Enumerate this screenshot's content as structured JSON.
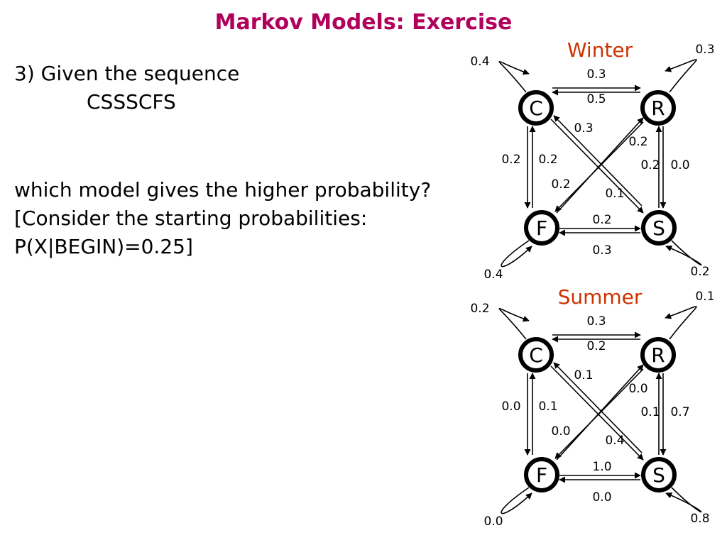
{
  "title": "Markov Models: Exercise",
  "question": {
    "line1": "3) Given the sequence",
    "sequence": "CSSSCFS",
    "line3": "which model gives the higher probability?",
    "line4": "[Consider the starting probabilities:",
    "line5": "P(X|BEGIN)=0.25]"
  },
  "nodes": [
    "C",
    "R",
    "F",
    "S"
  ],
  "models": [
    {
      "name": "Winter",
      "self": {
        "C": "0.4",
        "R": "0.3",
        "F": "0.4",
        "S": "0.2"
      },
      "C_R": "0.3",
      "R_C": "0.5",
      "F_S": "0.2",
      "S_F": "0.3",
      "C_F": "0.2",
      "F_C": "0.2",
      "R_S": "0.0",
      "S_R": "0.2",
      "C_S": "0.3",
      "S_C": "0.1",
      "R_F": "0.2",
      "F_R": "0.2"
    },
    {
      "name": "Summer",
      "self": {
        "C": "0.2",
        "R": "0.1",
        "F": "0.0",
        "S": "0.8"
      },
      "C_R": "0.3",
      "R_C": "0.2",
      "F_S": "1.0",
      "S_F": "0.0",
      "C_F": "0.0",
      "F_C": "0.1",
      "R_S": "0.7",
      "S_R": "0.1",
      "C_S": "0.1",
      "S_C": "0.4",
      "R_F": "0.0",
      "F_R": "0.0"
    }
  ]
}
